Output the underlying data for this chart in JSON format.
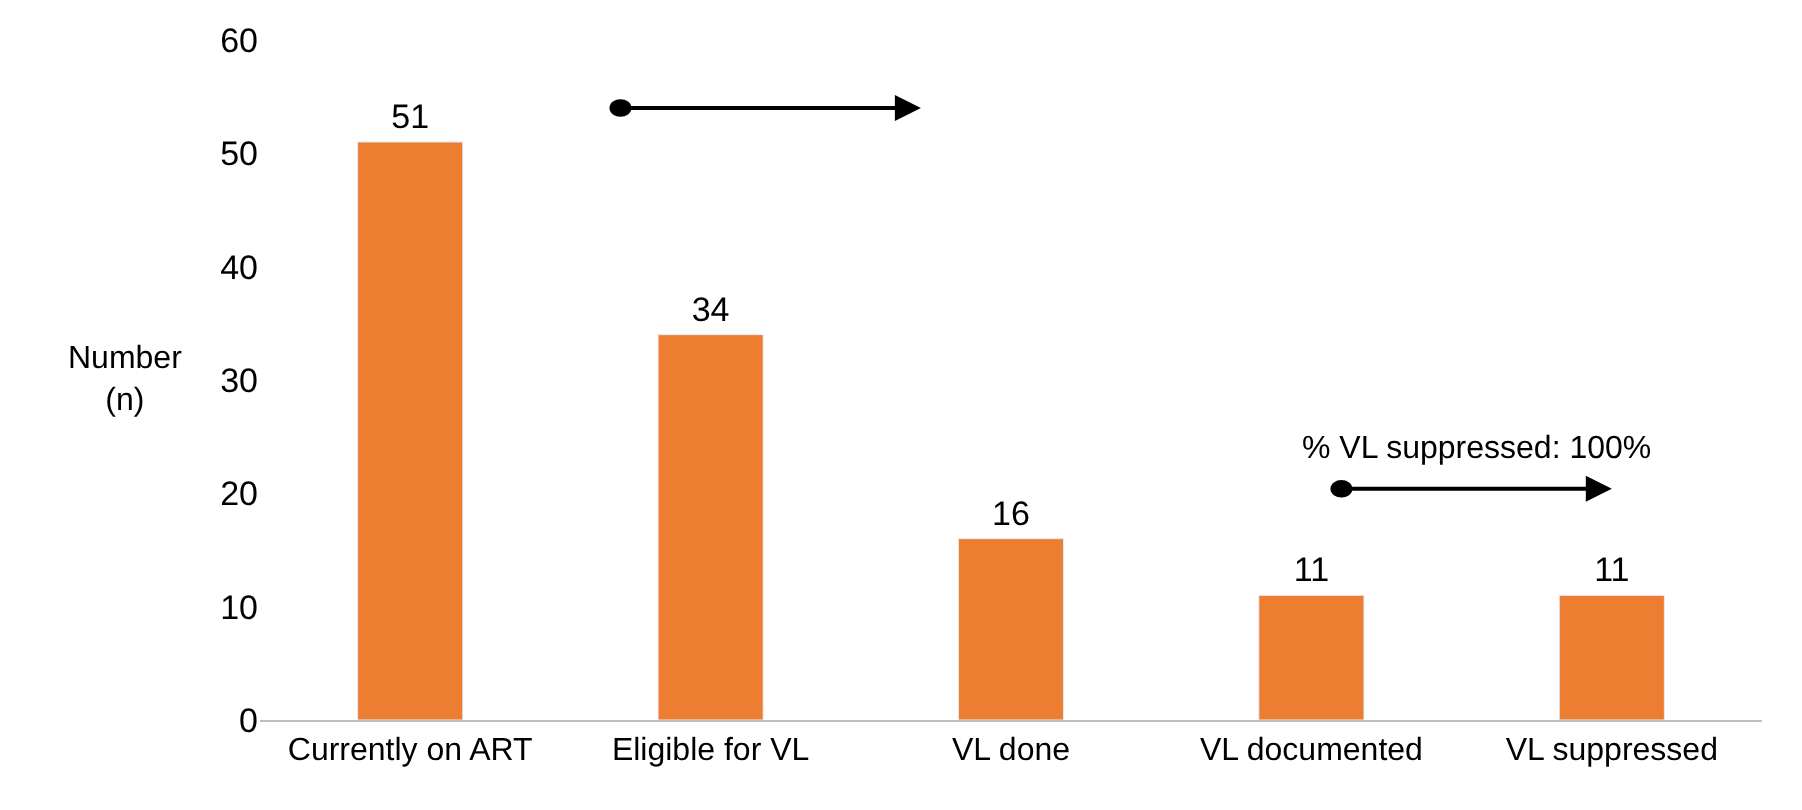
{
  "chart_data": {
    "type": "bar",
    "ylabel": "Number (n)",
    "categories": [
      "Currently on ART",
      "Eligible for VL",
      "VL done",
      "VL documented",
      "VL suppressed"
    ],
    "values": [
      51,
      34,
      16,
      11,
      11
    ],
    "color": "#ed7d31",
    "data_labels": true,
    "ylim": [
      0,
      60
    ],
    "yticks": [
      0,
      10,
      20,
      30,
      40,
      50,
      60
    ],
    "annotations": [
      "% VL suppressed: 100%"
    ]
  }
}
